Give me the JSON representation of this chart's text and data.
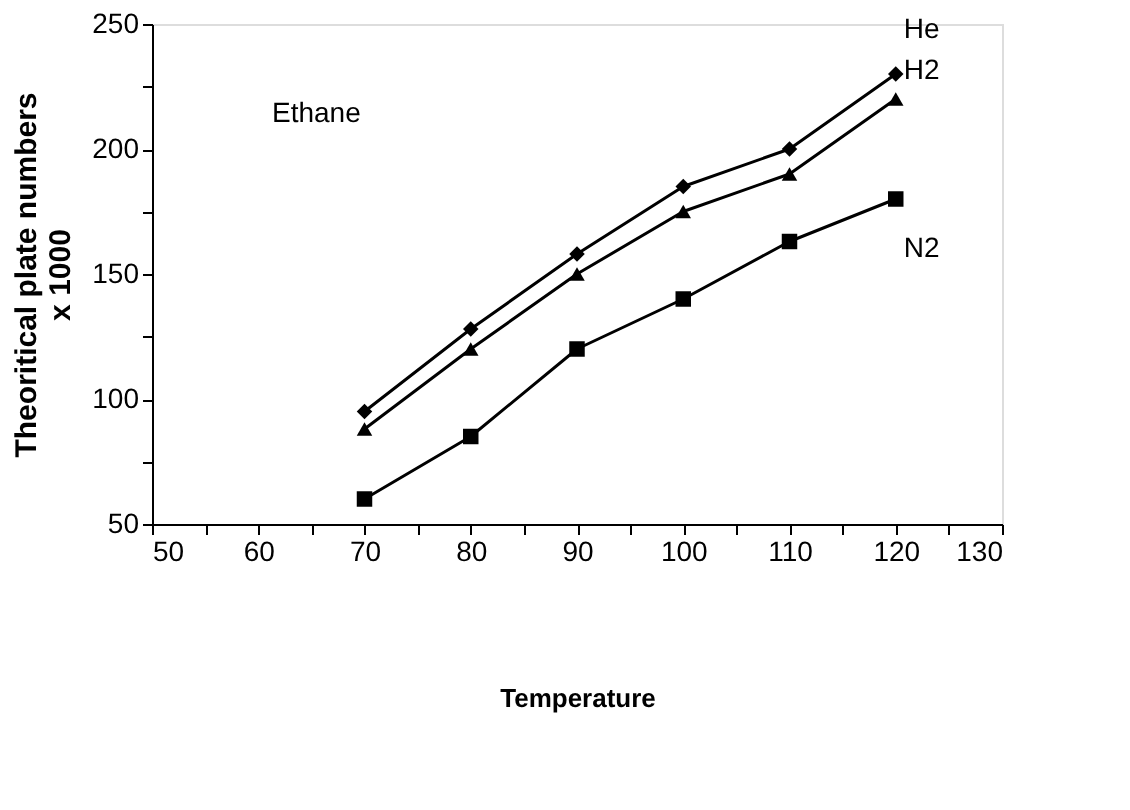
{
  "chart_data": {
    "type": "line",
    "xlabel": "Temperature",
    "ylabel": "Theoritical plate numbers\nx 1000",
    "x": [
      70,
      80,
      90,
      100,
      110,
      120
    ],
    "series": [
      {
        "name": "He",
        "color": "#000000",
        "marker": "diamond",
        "values": [
          95,
          128,
          158,
          185,
          200,
          230
        ]
      },
      {
        "name": "H2",
        "color": "#000000",
        "marker": "triangle",
        "values": [
          88,
          120,
          150,
          175,
          190,
          220
        ]
      },
      {
        "name": "N2",
        "color": "#000000",
        "marker": "square",
        "values": [
          60,
          85,
          120,
          140,
          163,
          180
        ]
      }
    ],
    "xlim": [
      50,
      130
    ],
    "xticks": [
      50,
      {
        "value": 55,
        "label": null
      },
      60,
      {
        "value": 65,
        "label": null
      },
      70,
      {
        "value": 75,
        "label": null
      },
      80,
      {
        "value": 85,
        "label": null
      },
      90,
      {
        "value": 95,
        "label": null
      },
      100,
      {
        "value": 105,
        "label": null
      },
      110,
      {
        "value": 115,
        "label": null
      },
      120,
      {
        "value": 125,
        "label": null
      },
      130
    ],
    "ylim": [
      50,
      250
    ],
    "yticks": [
      50,
      {
        "value": 75,
        "label": null
      },
      100,
      {
        "value": 125,
        "label": null
      },
      150,
      {
        "value": 175,
        "label": null
      },
      200,
      {
        "value": 225,
        "label": null
      },
      250
    ],
    "annotations": [
      "Ethane"
    ],
    "grid": false,
    "line_style": "solid"
  }
}
